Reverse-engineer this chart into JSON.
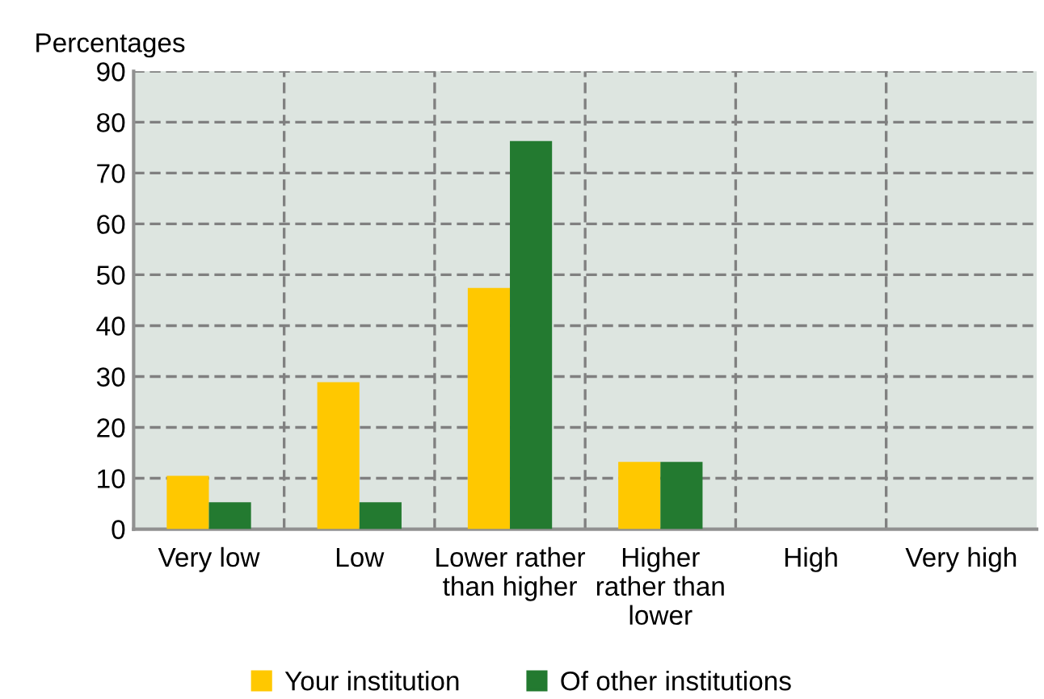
{
  "chart_data": {
    "type": "bar",
    "ylabel": "Percentages",
    "categories": [
      "Very low",
      "Low",
      "Lower rather\nthan higher",
      "Higher\nrather than\nlower",
      "High",
      "Very high"
    ],
    "series": [
      {
        "name": "Your institution",
        "color": "#ffc800",
        "values": [
          10.5,
          28.9,
          47.4,
          13.2,
          0,
          0
        ]
      },
      {
        "name": "Of other institutions",
        "color": "#237a30",
        "values": [
          5.3,
          5.3,
          76.3,
          13.2,
          0,
          0
        ]
      }
    ],
    "ylim": [
      0,
      90
    ],
    "yticks": [
      0,
      10,
      20,
      30,
      40,
      50,
      60,
      70,
      80,
      90
    ],
    "grid": true,
    "legend": "bottom"
  }
}
